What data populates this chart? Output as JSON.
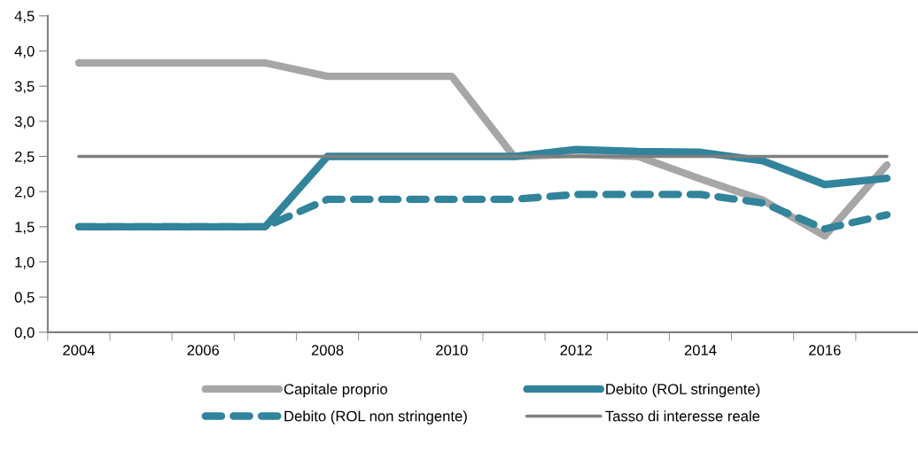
{
  "chart_data": {
    "type": "line",
    "categories": [
      "2004",
      null,
      "2006",
      null,
      "2008",
      null,
      "2010",
      null,
      "2012",
      null,
      "2014",
      null,
      "2016",
      null
    ],
    "series": [
      {
        "name": "Capitale proprio",
        "color": "#a6a6a6",
        "line_style": "solid",
        "values": [
          3.83,
          3.83,
          3.83,
          3.83,
          3.64,
          3.64,
          3.64,
          2.5,
          2.53,
          2.5,
          2.18,
          1.88,
          1.37,
          2.38
        ]
      },
      {
        "name": "Debito (ROL stringente)",
        "color": "#31849b",
        "line_style": "solid",
        "values": [
          1.5,
          1.5,
          1.5,
          1.5,
          2.5,
          2.5,
          2.5,
          2.5,
          2.6,
          2.57,
          2.56,
          2.44,
          2.1,
          2.19
        ]
      },
      {
        "name": "Debito (ROL non stringente)",
        "color": "#31849b",
        "line_style": "dashed",
        "values": [
          1.5,
          1.5,
          1.5,
          1.5,
          1.89,
          1.89,
          1.89,
          1.89,
          1.96,
          1.96,
          1.96,
          1.84,
          1.47,
          1.67
        ]
      },
      {
        "name": "Tasso di interesse reale",
        "color": "#7f7f7f",
        "line_style": "solid",
        "values": [
          2.5,
          2.5,
          2.5,
          2.5,
          2.5,
          2.5,
          2.5,
          2.5,
          2.5,
          2.5,
          2.5,
          2.5,
          2.5,
          2.5
        ]
      }
    ],
    "ylim": [
      0,
      4.5
    ],
    "yticks": [
      {
        "value": 0,
        "label": "0,0"
      },
      {
        "value": 0.5,
        "label": "0,5"
      },
      {
        "value": 1,
        "label": "1,0"
      },
      {
        "value": 1.5,
        "label": "1,5"
      },
      {
        "value": 2,
        "label": "2,0"
      },
      {
        "value": 2.5,
        "label": "2,5"
      },
      {
        "value": 3,
        "label": "3,0"
      },
      {
        "value": 3.5,
        "label": "3,5"
      },
      {
        "value": 4,
        "label": "4,0"
      },
      {
        "value": 4.5,
        "label": "4,5"
      }
    ],
    "grid": false,
    "legend": "bottom",
    "marker": "none"
  }
}
